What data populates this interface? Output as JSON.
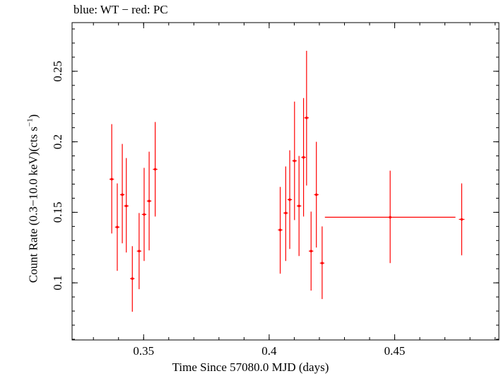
{
  "chart_data": {
    "type": "scatter",
    "title": "blue: WT − red: PC",
    "xlabel": "Time Since 57080.0 MJD (days)",
    "ylabel_main": "Count Rate (0.3−10.0 keV)(cts s",
    "ylabel_sup": "−1",
    "ylabel_close": ")",
    "xlim": [
      0.3215,
      0.4915
    ],
    "ylim": [
      0.0595,
      0.2845
    ],
    "x_ticks": [
      0.35,
      0.4,
      0.45
    ],
    "x_tick_labels": [
      "0.35",
      "0.4",
      "0.45"
    ],
    "y_ticks": [
      0.1,
      0.15,
      0.2,
      0.25
    ],
    "y_tick_labels": [
      "0.1",
      "0.15",
      "0.2",
      "0.25"
    ],
    "grid": false,
    "color": "#ff0000",
    "series": [
      {
        "points": [
          {
            "x": 0.3373,
            "y": 0.1735,
            "xerr": 0.0009,
            "ylo": 0.135,
            "yhi": 0.2125
          },
          {
            "x": 0.3395,
            "y": 0.1395,
            "xerr": 0.0009,
            "ylo": 0.1085,
            "yhi": 0.1705
          },
          {
            "x": 0.3415,
            "y": 0.1625,
            "xerr": 0.0009,
            "ylo": 0.128,
            "yhi": 0.1985
          },
          {
            "x": 0.3431,
            "y": 0.1545,
            "xerr": 0.0009,
            "ylo": 0.1215,
            "yhi": 0.1885
          },
          {
            "x": 0.3455,
            "y": 0.103,
            "xerr": 0.0009,
            "ylo": 0.0795,
            "yhi": 0.126
          },
          {
            "x": 0.3482,
            "y": 0.1225,
            "xerr": 0.0009,
            "ylo": 0.0955,
            "yhi": 0.1495
          },
          {
            "x": 0.3502,
            "y": 0.1485,
            "xerr": 0.0009,
            "ylo": 0.1155,
            "yhi": 0.1815
          },
          {
            "x": 0.3522,
            "y": 0.158,
            "xerr": 0.0009,
            "ylo": 0.123,
            "yhi": 0.193
          },
          {
            "x": 0.3546,
            "y": 0.1805,
            "xerr": 0.0009,
            "ylo": 0.147,
            "yhi": 0.214
          },
          {
            "x": 0.4044,
            "y": 0.1375,
            "xerr": 0.0009,
            "ylo": 0.1065,
            "yhi": 0.168
          },
          {
            "x": 0.4066,
            "y": 0.1495,
            "xerr": 0.0009,
            "ylo": 0.1155,
            "yhi": 0.1825
          },
          {
            "x": 0.4082,
            "y": 0.159,
            "xerr": 0.0009,
            "ylo": 0.124,
            "yhi": 0.194
          },
          {
            "x": 0.4101,
            "y": 0.1865,
            "xerr": 0.0009,
            "ylo": 0.1445,
            "yhi": 0.2285
          },
          {
            "x": 0.4119,
            "y": 0.1545,
            "xerr": 0.0009,
            "ylo": 0.119,
            "yhi": 0.19
          },
          {
            "x": 0.4137,
            "y": 0.189,
            "xerr": 0.0009,
            "ylo": 0.147,
            "yhi": 0.231
          },
          {
            "x": 0.4149,
            "y": 0.217,
            "xerr": 0.0009,
            "ylo": 0.169,
            "yhi": 0.2645
          },
          {
            "x": 0.4167,
            "y": 0.1225,
            "xerr": 0.0009,
            "ylo": 0.0945,
            "yhi": 0.1505
          },
          {
            "x": 0.4188,
            "y": 0.1625,
            "xerr": 0.0009,
            "ylo": 0.125,
            "yhi": 0.2
          },
          {
            "x": 0.4211,
            "y": 0.114,
            "xerr": 0.0009,
            "ylo": 0.0885,
            "yhi": 0.14
          },
          {
            "x": 0.4482,
            "y": 0.1465,
            "xerr": 0.026,
            "ylo": 0.114,
            "yhi": 0.1795
          },
          {
            "x": 0.4767,
            "y": 0.145,
            "xerr": 0.0011,
            "ylo": 0.1195,
            "yhi": 0.1705
          }
        ]
      }
    ]
  }
}
